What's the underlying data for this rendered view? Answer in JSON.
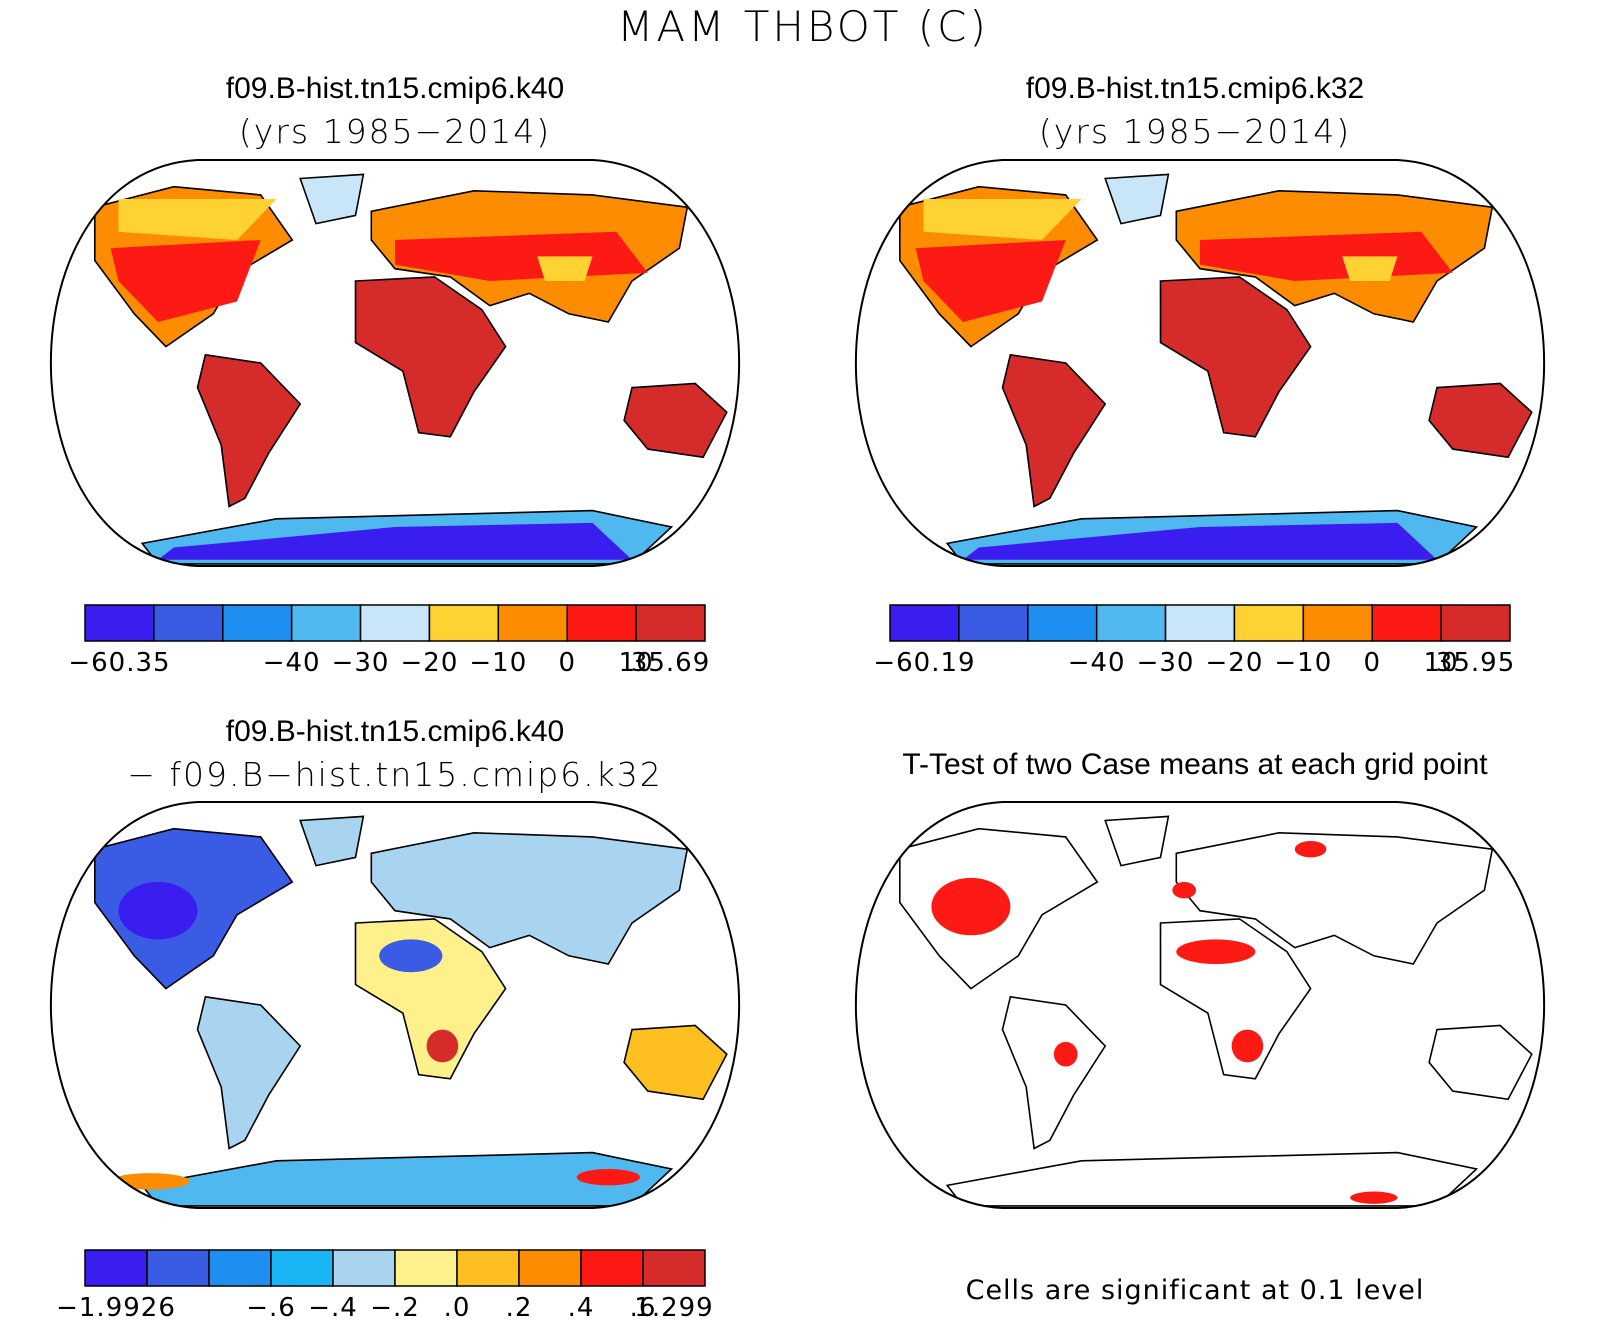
{
  "title": "MAM THBOT (C)",
  "panels": [
    {
      "title": "f09.B-hist.tn15.cmip6.k40",
      "subtitle": "(yrs 1985−2014)",
      "colorbar": {
        "colors": [
          "#3a1ef0",
          "#3a5ce4",
          "#1e8ff0",
          "#4fb8ee",
          "#c8e6f8",
          "#fdd232",
          "#fd8c00",
          "#fd1a14",
          "#d62b2b"
        ],
        "labels": [
          "−60.35",
          "−40",
          "−30",
          "−20",
          "−10",
          "0",
          "10",
          "35.69"
        ]
      }
    },
    {
      "title": "f09.B-hist.tn15.cmip6.k32",
      "subtitle": "(yrs 1985−2014)",
      "colorbar": {
        "colors": [
          "#3a1ef0",
          "#3a5ce4",
          "#1e8ff0",
          "#4fb8ee",
          "#c8e6f8",
          "#fdd232",
          "#fd8c00",
          "#fd1a14",
          "#d62b2b"
        ],
        "labels": [
          "−60.19",
          "−40",
          "−30",
          "−20",
          "−10",
          "0",
          "10",
          "35.95"
        ]
      }
    },
    {
      "title": "f09.B-hist.tn15.cmip6.k40",
      "subtitle": "− f09.B−hist.tn15.cmip6.k32",
      "colorbar": {
        "colors": [
          "#3a1ef0",
          "#3a5ce4",
          "#1e8ff0",
          "#18b4f4",
          "#a8d4f0",
          "#fef08a",
          "#fdc020",
          "#fd8c00",
          "#fd1a14",
          "#d62b2b"
        ],
        "labels": [
          "−1.9926",
          "−.6",
          "−.4",
          "−.2",
          ".0",
          ".2",
          ".4",
          ".6",
          "1.299"
        ]
      }
    },
    {
      "title": "T-Test of two Case means at each grid point",
      "footer": "Cells are significant at 0.1 level"
    }
  ]
}
